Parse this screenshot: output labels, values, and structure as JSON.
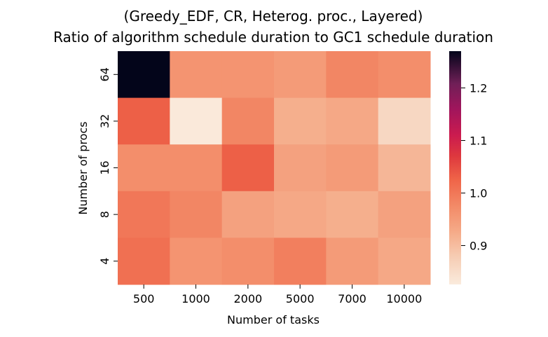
{
  "chart_data": {
    "type": "heatmap",
    "title": "(Greedy_EDF, CR, Heterog. proc., Layered)",
    "subtitle": "Ratio of algorithm schedule duration to GC1 schedule duration",
    "xlabel": "Number of tasks",
    "ylabel": "Number of procs",
    "x_categories": [
      "500",
      "1000",
      "2000",
      "5000",
      "7000",
      "10000"
    ],
    "y_categories": [
      "64",
      "32",
      "16",
      "8",
      "4"
    ],
    "values": [
      [
        1.27,
        0.96,
        0.96,
        0.95,
        0.98,
        0.97
      ],
      [
        1.03,
        0.83,
        0.98,
        0.92,
        0.93,
        0.86
      ],
      [
        0.97,
        0.97,
        1.03,
        0.94,
        0.95,
        0.91
      ],
      [
        1.0,
        0.98,
        0.94,
        0.93,
        0.92,
        0.94
      ],
      [
        1.01,
        0.96,
        0.97,
        0.99,
        0.95,
        0.93
      ]
    ],
    "colorbar": {
      "min": 0.826,
      "max": 1.27,
      "ticks": [
        "0.9",
        "1.0",
        "1.1",
        "1.2"
      ],
      "tick_values": [
        0.9,
        1.0,
        1.1,
        1.2
      ],
      "colormap": "rocket_r"
    },
    "grid": false
  }
}
